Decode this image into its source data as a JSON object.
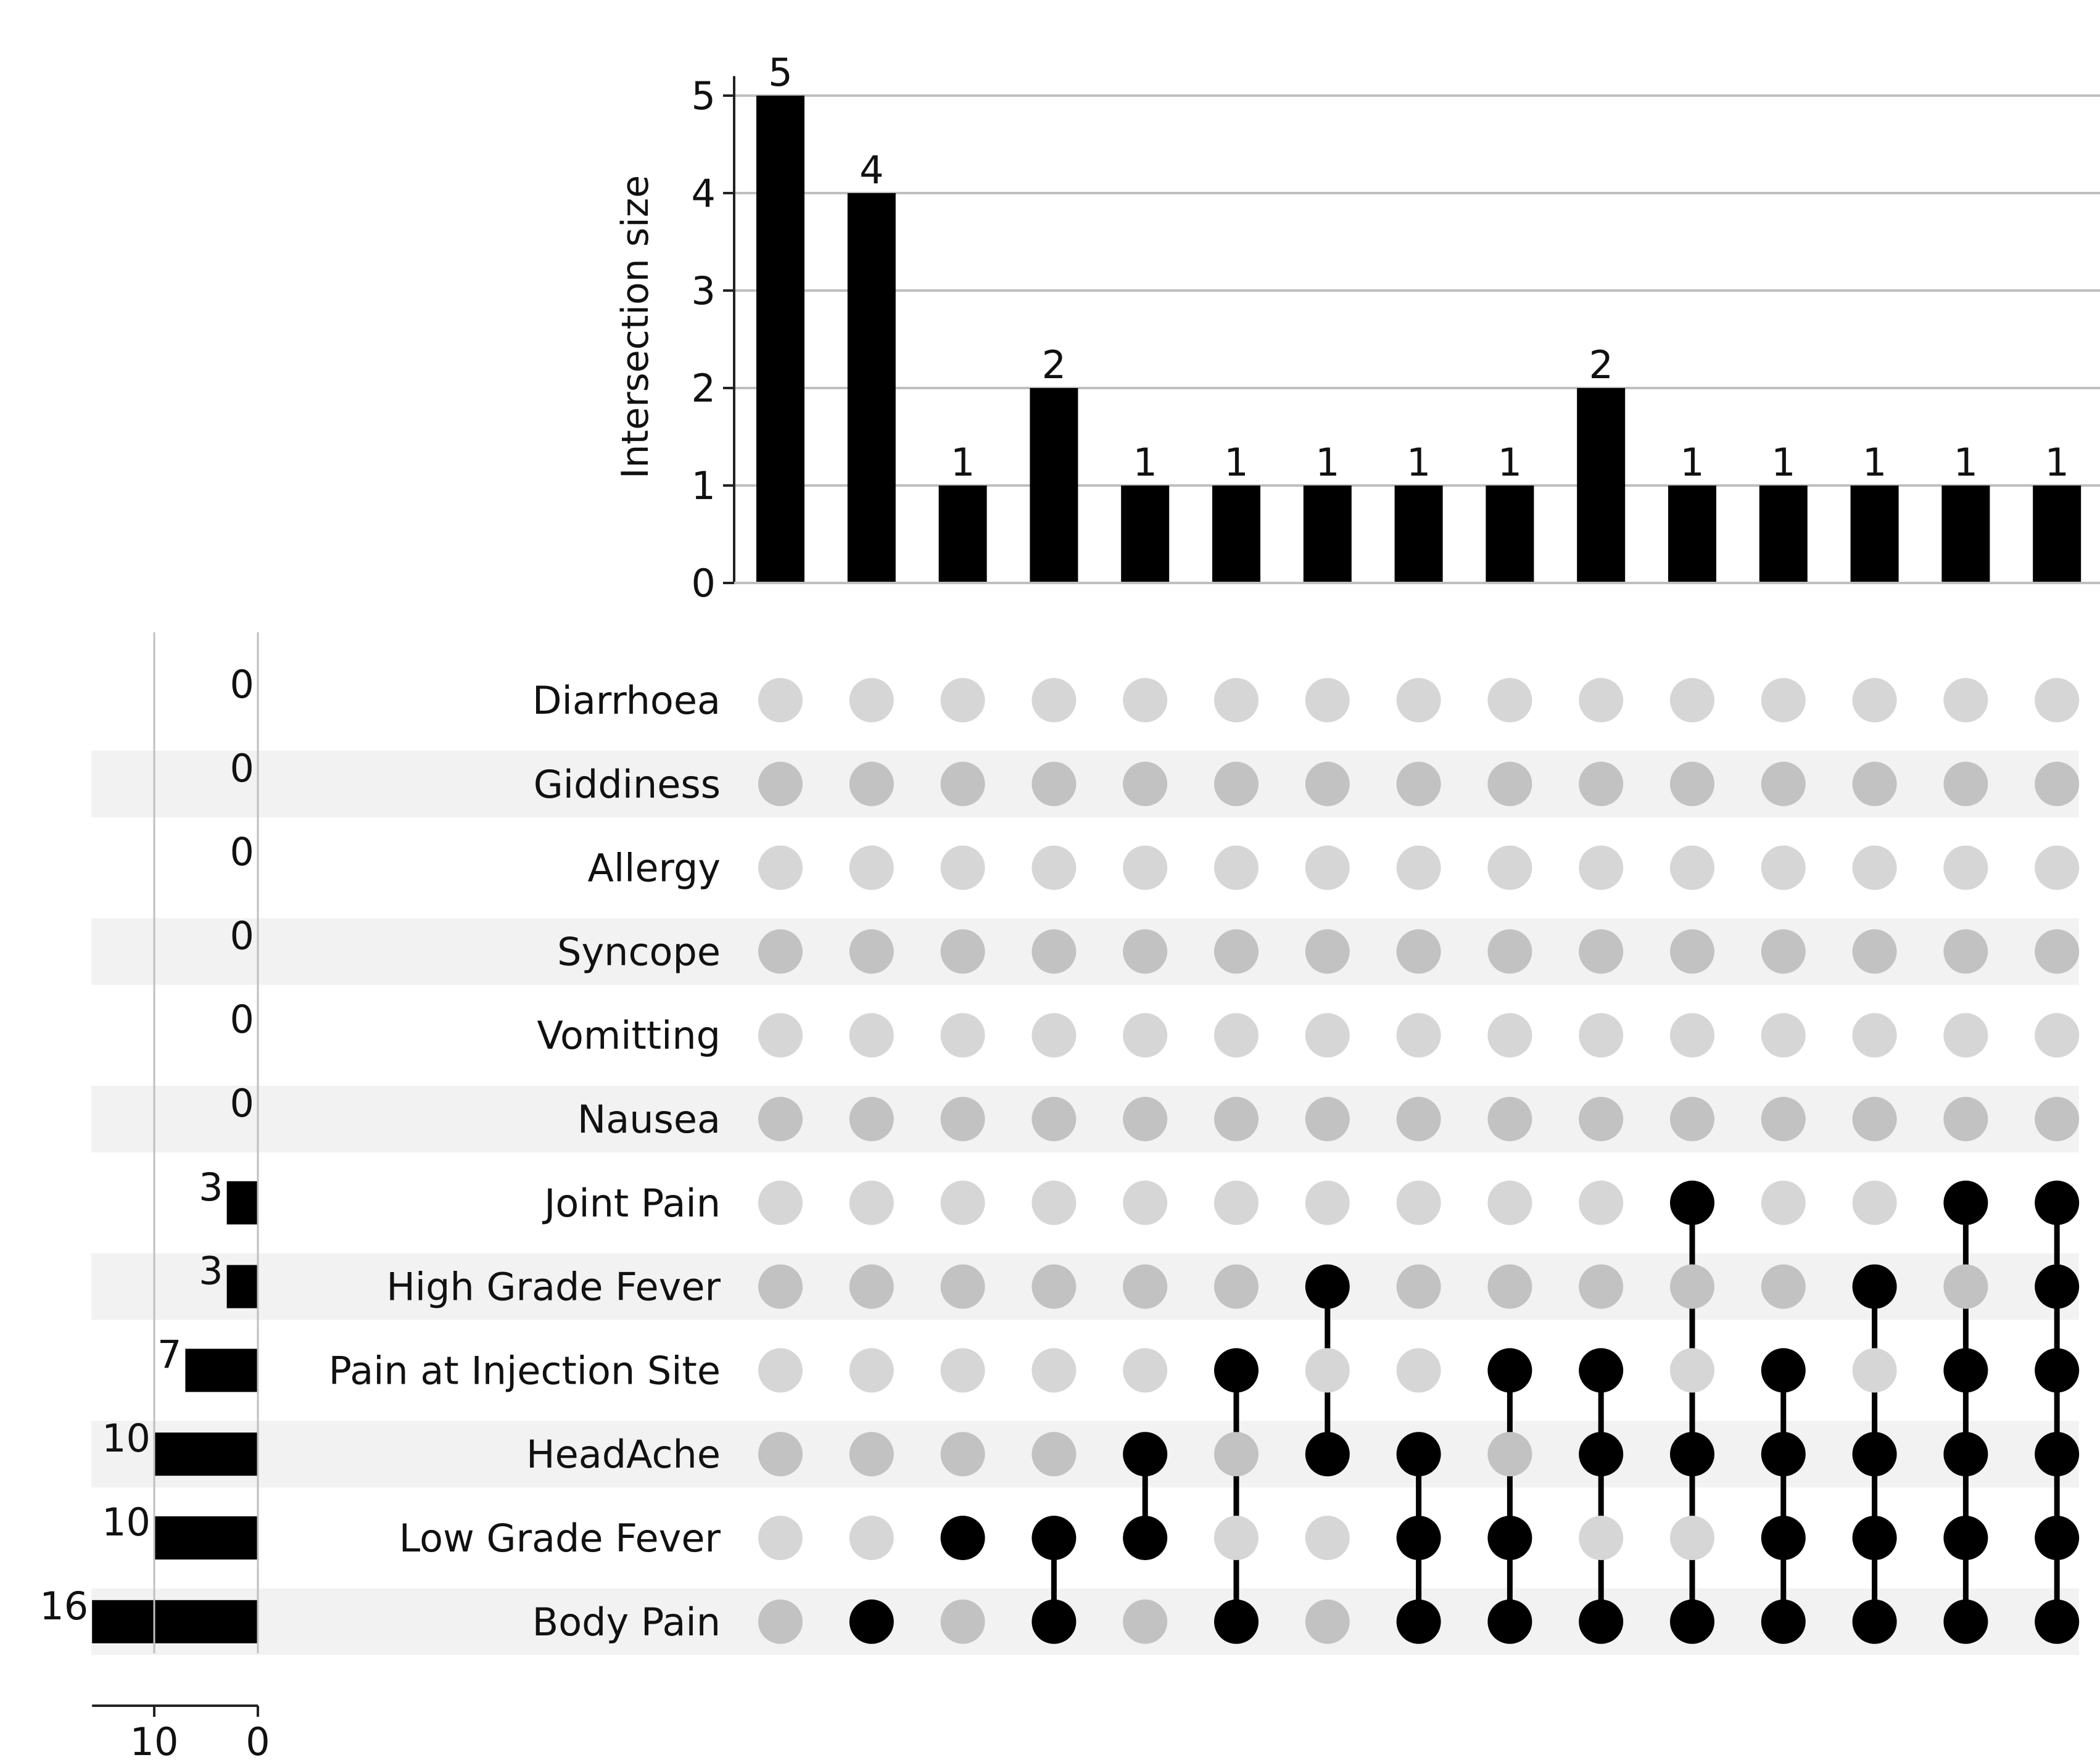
{
  "chart_data": {
    "type": "upset",
    "y_axis_label": "Intersection size",
    "y_ticks": [
      0,
      1,
      2,
      3,
      4,
      5
    ],
    "y_range": [
      0,
      5.2
    ],
    "set_size_ticks": [
      10,
      0
    ],
    "set_size_range": [
      0,
      16
    ],
    "sets": [
      {
        "name": "Diarrhoea",
        "size": 0
      },
      {
        "name": "Giddiness",
        "size": 0
      },
      {
        "name": "Allergy",
        "size": 0
      },
      {
        "name": "Syncope",
        "size": 0
      },
      {
        "name": "Vomitting",
        "size": 0
      },
      {
        "name": "Nausea",
        "size": 0
      },
      {
        "name": "Joint Pain",
        "size": 3
      },
      {
        "name": "High Grade Fever",
        "size": 3
      },
      {
        "name": "Pain at Injection Site",
        "size": 7
      },
      {
        "name": "HeadAche",
        "size": 10
      },
      {
        "name": "Low Grade Fever",
        "size": 10
      },
      {
        "name": "Body Pain",
        "size": 16
      }
    ],
    "intersections": [
      {
        "size": 5,
        "members": []
      },
      {
        "size": 4,
        "members": [
          "Body Pain"
        ]
      },
      {
        "size": 1,
        "members": [
          "Low Grade Fever"
        ]
      },
      {
        "size": 2,
        "members": [
          "Low Grade Fever",
          "Body Pain"
        ]
      },
      {
        "size": 1,
        "members": [
          "HeadAche",
          "Low Grade Fever"
        ]
      },
      {
        "size": 1,
        "members": [
          "Pain at Injection Site",
          "Body Pain"
        ]
      },
      {
        "size": 1,
        "members": [
          "High Grade Fever",
          "HeadAche"
        ]
      },
      {
        "size": 1,
        "members": [
          "HeadAche",
          "Low Grade Fever",
          "Body Pain"
        ]
      },
      {
        "size": 1,
        "members": [
          "Pain at Injection Site",
          "Low Grade Fever",
          "Body Pain"
        ]
      },
      {
        "size": 2,
        "members": [
          "Pain at Injection Site",
          "HeadAche",
          "Body Pain"
        ]
      },
      {
        "size": 1,
        "members": [
          "Joint Pain",
          "HeadAche",
          "Body Pain"
        ]
      },
      {
        "size": 1,
        "members": [
          "Pain at Injection Site",
          "HeadAche",
          "Low Grade Fever",
          "Body Pain"
        ]
      },
      {
        "size": 1,
        "members": [
          "High Grade Fever",
          "HeadAche",
          "Low Grade Fever",
          "Body Pain"
        ]
      },
      {
        "size": 1,
        "members": [
          "Joint Pain",
          "Pain at Injection Site",
          "HeadAche",
          "Low Grade Fever",
          "Body Pain"
        ]
      },
      {
        "size": 1,
        "members": [
          "Joint Pain",
          "High Grade Fever",
          "Pain at Injection Site",
          "HeadAche",
          "Low Grade Fever",
          "Body Pain"
        ]
      }
    ]
  },
  "colors": {
    "bar": "#000000",
    "dot_active": "#000000",
    "dot_inactive_light": "#d6d6d6",
    "dot_inactive_dark": "#c2c2c2",
    "stripe": "#f2f2f2",
    "grid": "#bfbfbf",
    "axis": "#222222"
  }
}
